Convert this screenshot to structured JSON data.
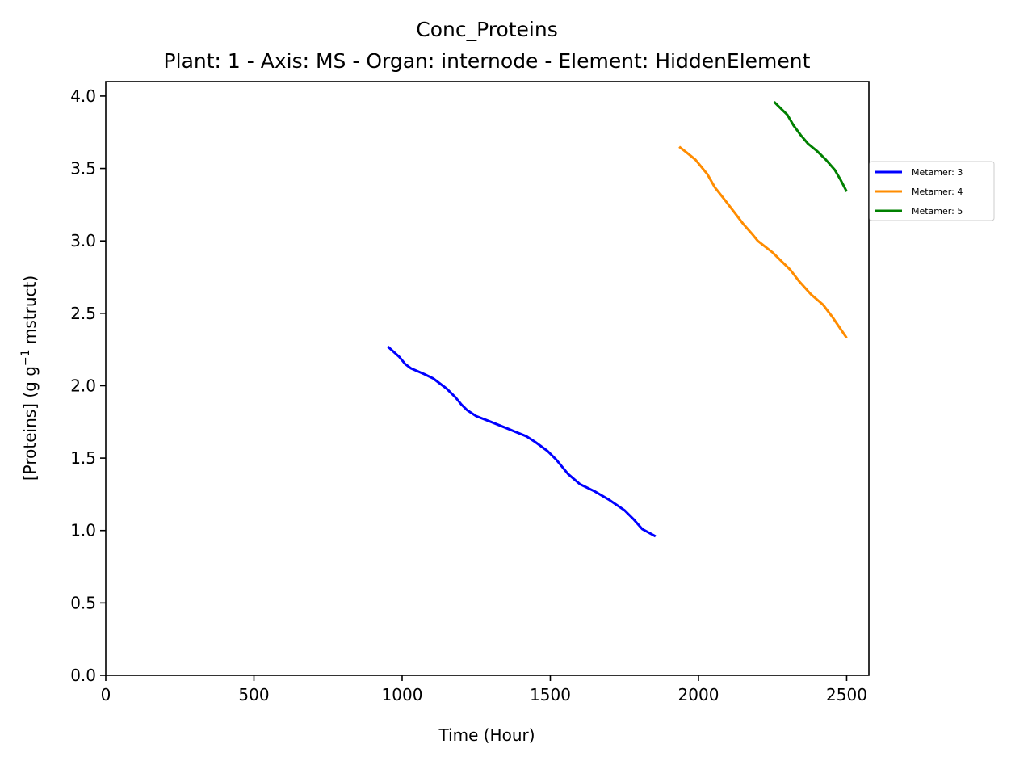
{
  "chart_data": {
    "type": "line",
    "title": "Conc_Proteins",
    "subtitle": "Plant: 1 - Axis: MS - Organ: internode - Element: HiddenElement",
    "xlabel": "Time (Hour)",
    "ylabel_parts": {
      "before": "[Proteins] (g g",
      "superscript": "−1",
      "after": " mstruct)"
    },
    "xlim": [
      0,
      2575
    ],
    "ylim": [
      0,
      4.1
    ],
    "xticks": [
      0,
      500,
      1000,
      1500,
      2000,
      2500
    ],
    "xtick_labels": [
      "0",
      "500",
      "1000",
      "1500",
      "2000",
      "2500"
    ],
    "yticks": [
      0,
      0.5,
      1.0,
      1.5,
      2.0,
      2.5,
      3.0,
      3.5,
      4.0
    ],
    "ytick_labels": [
      "0.0",
      "0.5",
      "1.0",
      "1.5",
      "2.0",
      "2.5",
      "3.0",
      "3.5",
      "4.0"
    ],
    "grid": false,
    "legend_position": "right, outside plot area",
    "series": [
      {
        "name": "Metamer: 3",
        "color": "#0000ff",
        "points": [
          [
            952,
            2.27
          ],
          [
            990,
            2.2
          ],
          [
            1010,
            2.15
          ],
          [
            1030,
            2.12
          ],
          [
            1075,
            2.08
          ],
          [
            1105,
            2.05
          ],
          [
            1150,
            1.98
          ],
          [
            1180,
            1.92
          ],
          [
            1200,
            1.87
          ],
          [
            1220,
            1.83
          ],
          [
            1250,
            1.79
          ],
          [
            1300,
            1.75
          ],
          [
            1360,
            1.7
          ],
          [
            1420,
            1.65
          ],
          [
            1450,
            1.61
          ],
          [
            1490,
            1.55
          ],
          [
            1520,
            1.49
          ],
          [
            1560,
            1.39
          ],
          [
            1600,
            1.32
          ],
          [
            1650,
            1.27
          ],
          [
            1700,
            1.21
          ],
          [
            1750,
            1.14
          ],
          [
            1780,
            1.08
          ],
          [
            1810,
            1.01
          ],
          [
            1855,
            0.96
          ]
        ]
      },
      {
        "name": "Metamer: 4",
        "color": "#ff8c00",
        "points": [
          [
            1935,
            3.65
          ],
          [
            1960,
            3.61
          ],
          [
            1990,
            3.56
          ],
          [
            2010,
            3.51
          ],
          [
            2030,
            3.46
          ],
          [
            2055,
            3.37
          ],
          [
            2090,
            3.28
          ],
          [
            2120,
            3.2
          ],
          [
            2150,
            3.12
          ],
          [
            2180,
            3.05
          ],
          [
            2200,
            3.0
          ],
          [
            2250,
            2.92
          ],
          [
            2280,
            2.86
          ],
          [
            2310,
            2.8
          ],
          [
            2340,
            2.72
          ],
          [
            2380,
            2.63
          ],
          [
            2420,
            2.56
          ],
          [
            2450,
            2.48
          ],
          [
            2480,
            2.39
          ],
          [
            2500,
            2.33
          ]
        ]
      },
      {
        "name": "Metamer: 5",
        "color": "#008000",
        "points": [
          [
            2255,
            3.96
          ],
          [
            2280,
            3.91
          ],
          [
            2300,
            3.87
          ],
          [
            2320,
            3.8
          ],
          [
            2345,
            3.73
          ],
          [
            2370,
            3.67
          ],
          [
            2400,
            3.62
          ],
          [
            2430,
            3.56
          ],
          [
            2460,
            3.49
          ],
          [
            2480,
            3.42
          ],
          [
            2500,
            3.34
          ]
        ]
      }
    ]
  }
}
